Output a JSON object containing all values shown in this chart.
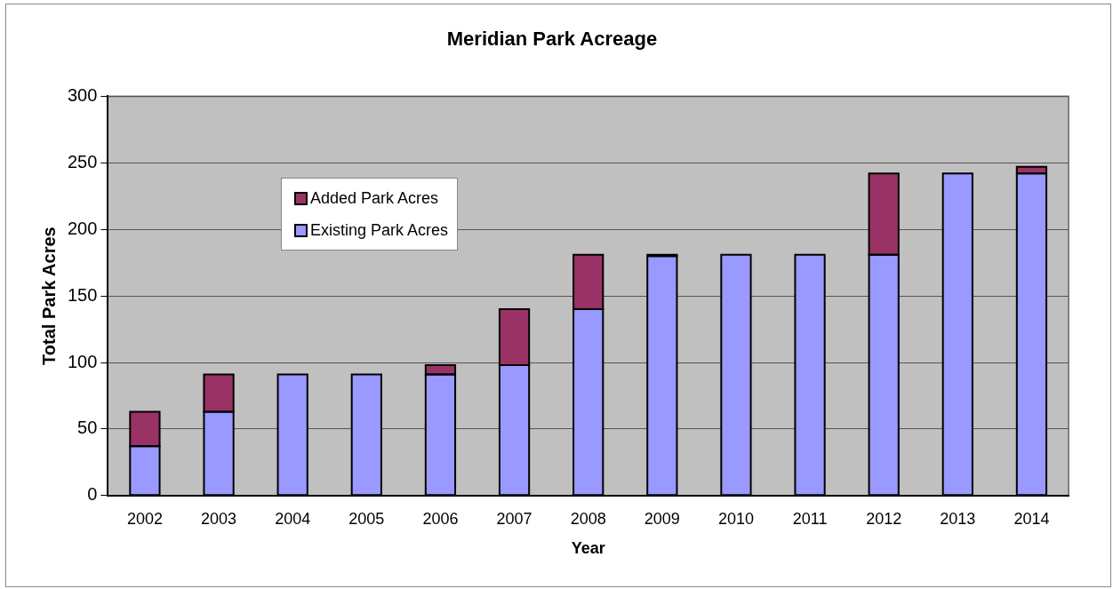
{
  "chart_data": {
    "type": "bar",
    "title": "Meridian Park Acreage",
    "xlabel": "Year",
    "ylabel": "Total Park Acres",
    "categories": [
      "2002",
      "2003",
      "2004",
      "2005",
      "2006",
      "2007",
      "2008",
      "2009",
      "2010",
      "2011",
      "2012",
      "2013",
      "2014"
    ],
    "series": [
      {
        "name": "Existing Park Acres",
        "color": "#9999ff",
        "values": [
          37,
          63,
          91,
          91,
          91,
          98,
          140,
          180,
          181,
          181,
          181,
          242,
          242
        ]
      },
      {
        "name": "Added Park Acres",
        "color": "#993366",
        "values": [
          26,
          28,
          0,
          0,
          7,
          42,
          41,
          1,
          0,
          0,
          61,
          0,
          5
        ]
      }
    ],
    "stacked": true,
    "ylim": [
      0,
      300
    ],
    "yticks": [
      0,
      50,
      100,
      150,
      200,
      250,
      300
    ],
    "grid": "y",
    "legend": "top left"
  }
}
